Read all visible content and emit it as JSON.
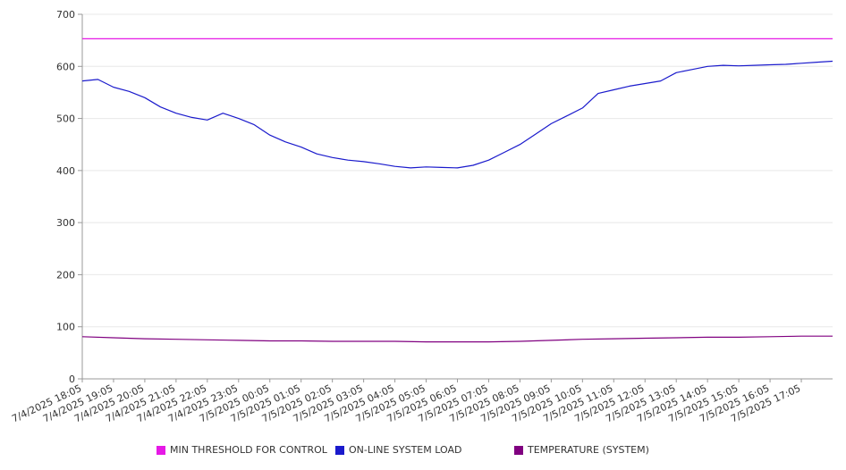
{
  "chart_data": {
    "type": "line",
    "ylim": [
      0,
      700
    ],
    "yticks": [
      0,
      100,
      200,
      300,
      400,
      500,
      600,
      700
    ],
    "grid": true,
    "legend_position": "bottom",
    "x_range": [
      "7/4/2025 18:05",
      "7/5/2025 18:05"
    ],
    "xtick_labels": [
      "7/4/2025 18:05",
      "7/4/2025 19:05",
      "7/4/2025 20:05",
      "7/4/2025 21:05",
      "7/4/2025 22:05",
      "7/4/2025 23:05",
      "7/5/2025 00:05",
      "7/5/2025 01:05",
      "7/5/2025 02:05",
      "7/5/2025 03:05",
      "7/5/2025 04:05",
      "7/5/2025 05:05",
      "7/5/2025 06:05",
      "7/5/2025 07:05",
      "7/5/2025 08:05",
      "7/5/2025 09:05",
      "7/5/2025 10:05",
      "7/5/2025 11:05",
      "7/5/2025 12:05",
      "7/5/2025 13:05",
      "7/5/2025 14:05",
      "7/5/2025 15:05",
      "7/5/2025 16:05",
      "7/5/2025 17:05"
    ],
    "series": [
      {
        "name": "MIN THRESHOLD FOR CONTROL",
        "color": "#e619e6",
        "x": [
          "7/4/2025 18:05",
          "7/5/2025 18:05"
        ],
        "values": [
          653,
          653
        ]
      },
      {
        "name": "ON-LINE SYSTEM LOAD",
        "color": "#1a1acc",
        "x": [
          "7/4/2025 18:05",
          "7/4/2025 18:35",
          "7/4/2025 19:05",
          "7/4/2025 19:35",
          "7/4/2025 20:05",
          "7/4/2025 20:35",
          "7/4/2025 21:05",
          "7/4/2025 21:35",
          "7/4/2025 22:05",
          "7/4/2025 22:35",
          "7/4/2025 23:05",
          "7/4/2025 23:35",
          "7/5/2025 00:05",
          "7/5/2025 00:35",
          "7/5/2025 01:05",
          "7/5/2025 01:35",
          "7/5/2025 02:05",
          "7/5/2025 02:35",
          "7/5/2025 03:05",
          "7/5/2025 03:35",
          "7/5/2025 04:05",
          "7/5/2025 04:35",
          "7/5/2025 05:05",
          "7/5/2025 05:35",
          "7/5/2025 06:05",
          "7/5/2025 06:35",
          "7/5/2025 07:05",
          "7/5/2025 07:35",
          "7/5/2025 08:05",
          "7/5/2025 08:35",
          "7/5/2025 09:05",
          "7/5/2025 09:35",
          "7/5/2025 10:05",
          "7/5/2025 10:35",
          "7/5/2025 11:05",
          "7/5/2025 11:35",
          "7/5/2025 12:05",
          "7/5/2025 12:35",
          "7/5/2025 13:05",
          "7/5/2025 13:35",
          "7/5/2025 14:05",
          "7/5/2025 14:35",
          "7/5/2025 15:05",
          "7/5/2025 15:35",
          "7/5/2025 16:05",
          "7/5/2025 16:35",
          "7/5/2025 17:05",
          "7/5/2025 17:35",
          "7/5/2025 18:05"
        ],
        "values": [
          572,
          575,
          560,
          552,
          540,
          522,
          510,
          502,
          497,
          510,
          500,
          488,
          468,
          455,
          445,
          432,
          425,
          420,
          417,
          413,
          408,
          405,
          407,
          406,
          405,
          410,
          420,
          435,
          450,
          470,
          490,
          505,
          520,
          548,
          555,
          562,
          567,
          572,
          588,
          594,
          600,
          602,
          601,
          602,
          603,
          604,
          606,
          608,
          610
        ]
      },
      {
        "name": "TEMPERATURE (SYSTEM)",
        "color": "#800080",
        "x": [
          "7/4/2025 18:05",
          "7/4/2025 19:05",
          "7/4/2025 20:05",
          "7/4/2025 21:05",
          "7/4/2025 22:05",
          "7/4/2025 23:05",
          "7/5/2025 00:05",
          "7/5/2025 01:05",
          "7/5/2025 02:05",
          "7/5/2025 03:05",
          "7/5/2025 04:05",
          "7/5/2025 05:05",
          "7/5/2025 06:05",
          "7/5/2025 07:05",
          "7/5/2025 08:05",
          "7/5/2025 09:05",
          "7/5/2025 10:05",
          "7/5/2025 11:05",
          "7/5/2025 12:05",
          "7/5/2025 13:05",
          "7/5/2025 14:05",
          "7/5/2025 15:05",
          "7/5/2025 16:05",
          "7/5/2025 17:05",
          "7/5/2025 18:05"
        ],
        "values": [
          81,
          79,
          77,
          76,
          75,
          74,
          73,
          73,
          72,
          72,
          72,
          71,
          71,
          71,
          72,
          74,
          76,
          77,
          78,
          79,
          80,
          80,
          81,
          82,
          82
        ]
      }
    ]
  }
}
